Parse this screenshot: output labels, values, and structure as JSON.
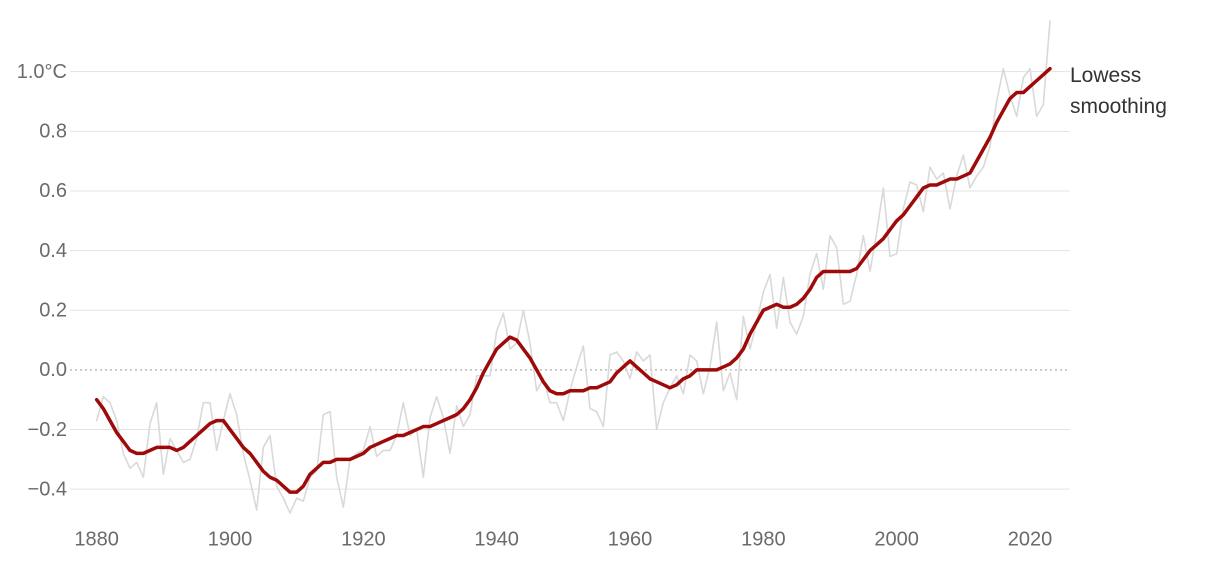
{
  "chart_data": {
    "type": "line",
    "x": [
      1880,
      1881,
      1882,
      1883,
      1884,
      1885,
      1886,
      1887,
      1888,
      1889,
      1890,
      1891,
      1892,
      1893,
      1894,
      1895,
      1896,
      1897,
      1898,
      1899,
      1900,
      1901,
      1902,
      1903,
      1904,
      1905,
      1906,
      1907,
      1908,
      1909,
      1910,
      1911,
      1912,
      1913,
      1914,
      1915,
      1916,
      1917,
      1918,
      1919,
      1920,
      1921,
      1922,
      1923,
      1924,
      1925,
      1926,
      1927,
      1928,
      1929,
      1930,
      1931,
      1932,
      1933,
      1934,
      1935,
      1936,
      1937,
      1938,
      1939,
      1940,
      1941,
      1942,
      1943,
      1944,
      1945,
      1946,
      1947,
      1948,
      1949,
      1950,
      1951,
      1952,
      1953,
      1954,
      1955,
      1956,
      1957,
      1958,
      1959,
      1960,
      1961,
      1962,
      1963,
      1964,
      1965,
      1966,
      1967,
      1968,
      1969,
      1970,
      1971,
      1972,
      1973,
      1974,
      1975,
      1976,
      1977,
      1978,
      1979,
      1980,
      1981,
      1982,
      1983,
      1984,
      1985,
      1986,
      1987,
      1988,
      1989,
      1990,
      1991,
      1992,
      1993,
      1994,
      1995,
      1996,
      1997,
      1998,
      1999,
      2000,
      2001,
      2002,
      2003,
      2004,
      2005,
      2006,
      2007,
      2008,
      2009,
      2010,
      2011,
      2012,
      2013,
      2014,
      2015,
      2016,
      2017,
      2018,
      2019,
      2020,
      2021,
      2022,
      2023
    ],
    "series": [
      {
        "color": "#d9d9d9",
        "values": [
          -0.17,
          -0.09,
          -0.11,
          -0.17,
          -0.28,
          -0.33,
          -0.31,
          -0.36,
          -0.18,
          -0.11,
          -0.35,
          -0.23,
          -0.27,
          -0.31,
          -0.3,
          -0.23,
          -0.11,
          -0.11,
          -0.27,
          -0.17,
          -0.08,
          -0.15,
          -0.28,
          -0.37,
          -0.47,
          -0.26,
          -0.22,
          -0.39,
          -0.43,
          -0.48,
          -0.43,
          -0.44,
          -0.36,
          -0.34,
          -0.15,
          -0.14,
          -0.36,
          -0.46,
          -0.3,
          -0.28,
          -0.27,
          -0.19,
          -0.29,
          -0.27,
          -0.27,
          -0.22,
          -0.11,
          -0.22,
          -0.2,
          -0.36,
          -0.16,
          -0.09,
          -0.16,
          -0.28,
          -0.12,
          -0.19,
          -0.15,
          -0.02,
          -0.02,
          -0.02,
          0.13,
          0.19,
          0.07,
          0.09,
          0.2,
          0.09,
          -0.07,
          -0.03,
          -0.11,
          -0.11,
          -0.17,
          -0.07,
          0.01,
          0.08,
          -0.13,
          -0.14,
          -0.19,
          0.05,
          0.06,
          0.03,
          -0.03,
          0.06,
          0.03,
          0.05,
          -0.2,
          -0.11,
          -0.06,
          -0.02,
          -0.08,
          0.05,
          0.03,
          -0.08,
          0.01,
          0.16,
          -0.07,
          -0.01,
          -0.1,
          0.18,
          0.07,
          0.16,
          0.26,
          0.32,
          0.14,
          0.31,
          0.16,
          0.12,
          0.18,
          0.32,
          0.39,
          0.27,
          0.45,
          0.41,
          0.22,
          0.23,
          0.32,
          0.45,
          0.33,
          0.46,
          0.61,
          0.38,
          0.39,
          0.54,
          0.63,
          0.62,
          0.53,
          0.68,
          0.64,
          0.66,
          0.54,
          0.65,
          0.72,
          0.61,
          0.65,
          0.68,
          0.75,
          0.9,
          1.01,
          0.92,
          0.85,
          0.98,
          1.01,
          0.85,
          0.89,
          1.17
        ]
      },
      {
        "name": "Lowess smoothing",
        "color": "#9e0a0a",
        "values": [
          -0.1,
          -0.13,
          -0.17,
          -0.21,
          -0.24,
          -0.27,
          -0.28,
          -0.28,
          -0.27,
          -0.26,
          -0.26,
          -0.26,
          -0.27,
          -0.26,
          -0.24,
          -0.22,
          -0.2,
          -0.18,
          -0.17,
          -0.17,
          -0.2,
          -0.23,
          -0.26,
          -0.28,
          -0.31,
          -0.34,
          -0.36,
          -0.37,
          -0.39,
          -0.41,
          -0.41,
          -0.39,
          -0.35,
          -0.33,
          -0.31,
          -0.31,
          -0.3,
          -0.3,
          -0.3,
          -0.29,
          -0.28,
          -0.26,
          -0.25,
          -0.24,
          -0.23,
          -0.22,
          -0.22,
          -0.21,
          -0.2,
          -0.19,
          -0.19,
          -0.18,
          -0.17,
          -0.16,
          -0.15,
          -0.13,
          -0.1,
          -0.06,
          -0.01,
          0.03,
          0.07,
          0.09,
          0.11,
          0.1,
          0.07,
          0.04,
          0.0,
          -0.04,
          -0.07,
          -0.08,
          -0.08,
          -0.07,
          -0.07,
          -0.07,
          -0.06,
          -0.06,
          -0.05,
          -0.04,
          -0.01,
          0.01,
          0.03,
          0.01,
          -0.01,
          -0.03,
          -0.04,
          -0.05,
          -0.06,
          -0.05,
          -0.03,
          -0.02,
          0.0,
          0.0,
          0.0,
          0.0,
          0.01,
          0.02,
          0.04,
          0.07,
          0.12,
          0.16,
          0.2,
          0.21,
          0.22,
          0.21,
          0.21,
          0.22,
          0.24,
          0.27,
          0.31,
          0.33,
          0.33,
          0.33,
          0.33,
          0.33,
          0.34,
          0.37,
          0.4,
          0.42,
          0.44,
          0.47,
          0.5,
          0.52,
          0.55,
          0.58,
          0.61,
          0.62,
          0.62,
          0.63,
          0.64,
          0.64,
          0.65,
          0.66,
          0.7,
          0.74,
          0.78,
          0.83,
          0.87,
          0.91,
          0.93,
          0.93,
          0.95,
          0.97,
          0.99,
          1.01
        ]
      }
    ],
    "xlim": [
      1876,
      2026
    ],
    "xticks": [
      1880,
      1900,
      1920,
      1940,
      1960,
      1980,
      2000,
      2020
    ],
    "ylim": [
      -0.5,
      1.18
    ],
    "yticks": [
      {
        "value": -0.4,
        "label": "−0.4"
      },
      {
        "value": -0.2,
        "label": "−0.2"
      },
      {
        "value": 0,
        "label": "0.0"
      },
      0.2,
      0.4,
      0.6,
      0.8,
      {
        "value": 1,
        "label": "1.0°C"
      }
    ],
    "grid": true
  }
}
